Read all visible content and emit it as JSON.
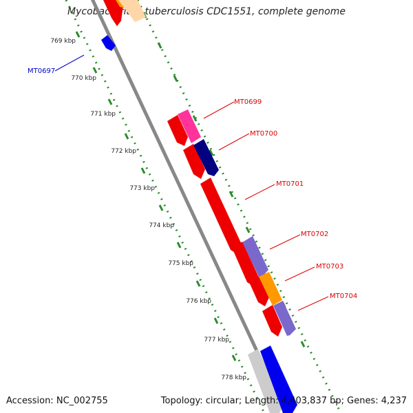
{
  "title": "Mycobacterium tuberculosis CDC1551, complete genome",
  "footer": {
    "accession_label": "Accession:",
    "accession": "NC_002755",
    "topology_label": "Topology:",
    "topology": "circular",
    "length_label": "Length:",
    "length": "4,403,837 bp",
    "genes_label": "Genes:",
    "genes": "4,237"
  },
  "scale_ticks": [
    "769 kbp",
    "770 kbp",
    "771 kbp",
    "772 kbp",
    "773 kbp",
    "774 kbp",
    "775 kbp",
    "776 kbp",
    "777 kbp",
    "778 kbp"
  ],
  "gene_labels": [
    {
      "name": "MT0697",
      "color": "#0000cc"
    },
    {
      "name": "MT0699",
      "color": "#dd0000"
    },
    {
      "name": "MT0700",
      "color": "#dd0000"
    },
    {
      "name": "MT0701",
      "color": "#dd0000"
    },
    {
      "name": "MT0702",
      "color": "#dd0000"
    },
    {
      "name": "MT0703",
      "color": "#dd0000"
    },
    {
      "name": "MT0704",
      "color": "#dd0000"
    }
  ],
  "colors": {
    "backbone": "#888888",
    "scale_dots": "#2a8a2a",
    "gene_red": "#ee0000",
    "gene_blue": "#0000ee",
    "gene_navy": "#000080",
    "gene_pink": "#ff3399",
    "gene_purple": "#7b68cc",
    "gene_orange": "#ff9900",
    "gene_gray": "#cccccc"
  }
}
